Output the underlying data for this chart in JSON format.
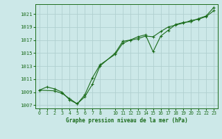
{
  "title": "Graphe pression niveau de la mer (hPa)",
  "bg_color": "#cce8e8",
  "grid_color": "#b0d0d0",
  "line_color": "#1a6b1a",
  "xlim": [
    -0.5,
    23.5
  ],
  "ylim": [
    1006.5,
    1022.5
  ],
  "yticks": [
    1007,
    1009,
    1011,
    1013,
    1015,
    1017,
    1019,
    1021
  ],
  "xticks": [
    0,
    1,
    2,
    3,
    4,
    5,
    6,
    7,
    8,
    10,
    11,
    12,
    13,
    14,
    15,
    16,
    17,
    18,
    19,
    20,
    21,
    22,
    23
  ],
  "series1_x": [
    0,
    1,
    2,
    3,
    4,
    5,
    6,
    7,
    8,
    10,
    11,
    12,
    13,
    14,
    15,
    16,
    17,
    18,
    19,
    20,
    21,
    22,
    23
  ],
  "series1_y": [
    1009.3,
    1009.8,
    1009.5,
    1009.0,
    1007.8,
    1007.2,
    1008.3,
    1010.2,
    1013.0,
    1015.0,
    1016.8,
    1017.0,
    1017.2,
    1017.6,
    1017.5,
    1018.3,
    1019.0,
    1019.3,
    1019.6,
    1020.0,
    1020.2,
    1020.6,
    1021.5
  ],
  "series2_x": [
    0,
    2,
    3,
    4,
    5,
    6,
    7,
    8,
    10,
    11,
    12,
    13,
    14,
    15,
    16,
    17,
    18,
    19,
    20,
    21,
    22,
    23
  ],
  "series2_y": [
    1009.3,
    1009.2,
    1008.8,
    1008.0,
    1007.2,
    1008.6,
    1011.2,
    1013.2,
    1014.8,
    1016.5,
    1017.0,
    1017.5,
    1017.8,
    1015.2,
    1017.6,
    1018.5,
    1019.4,
    1019.7,
    1019.8,
    1020.3,
    1020.7,
    1022.0
  ]
}
